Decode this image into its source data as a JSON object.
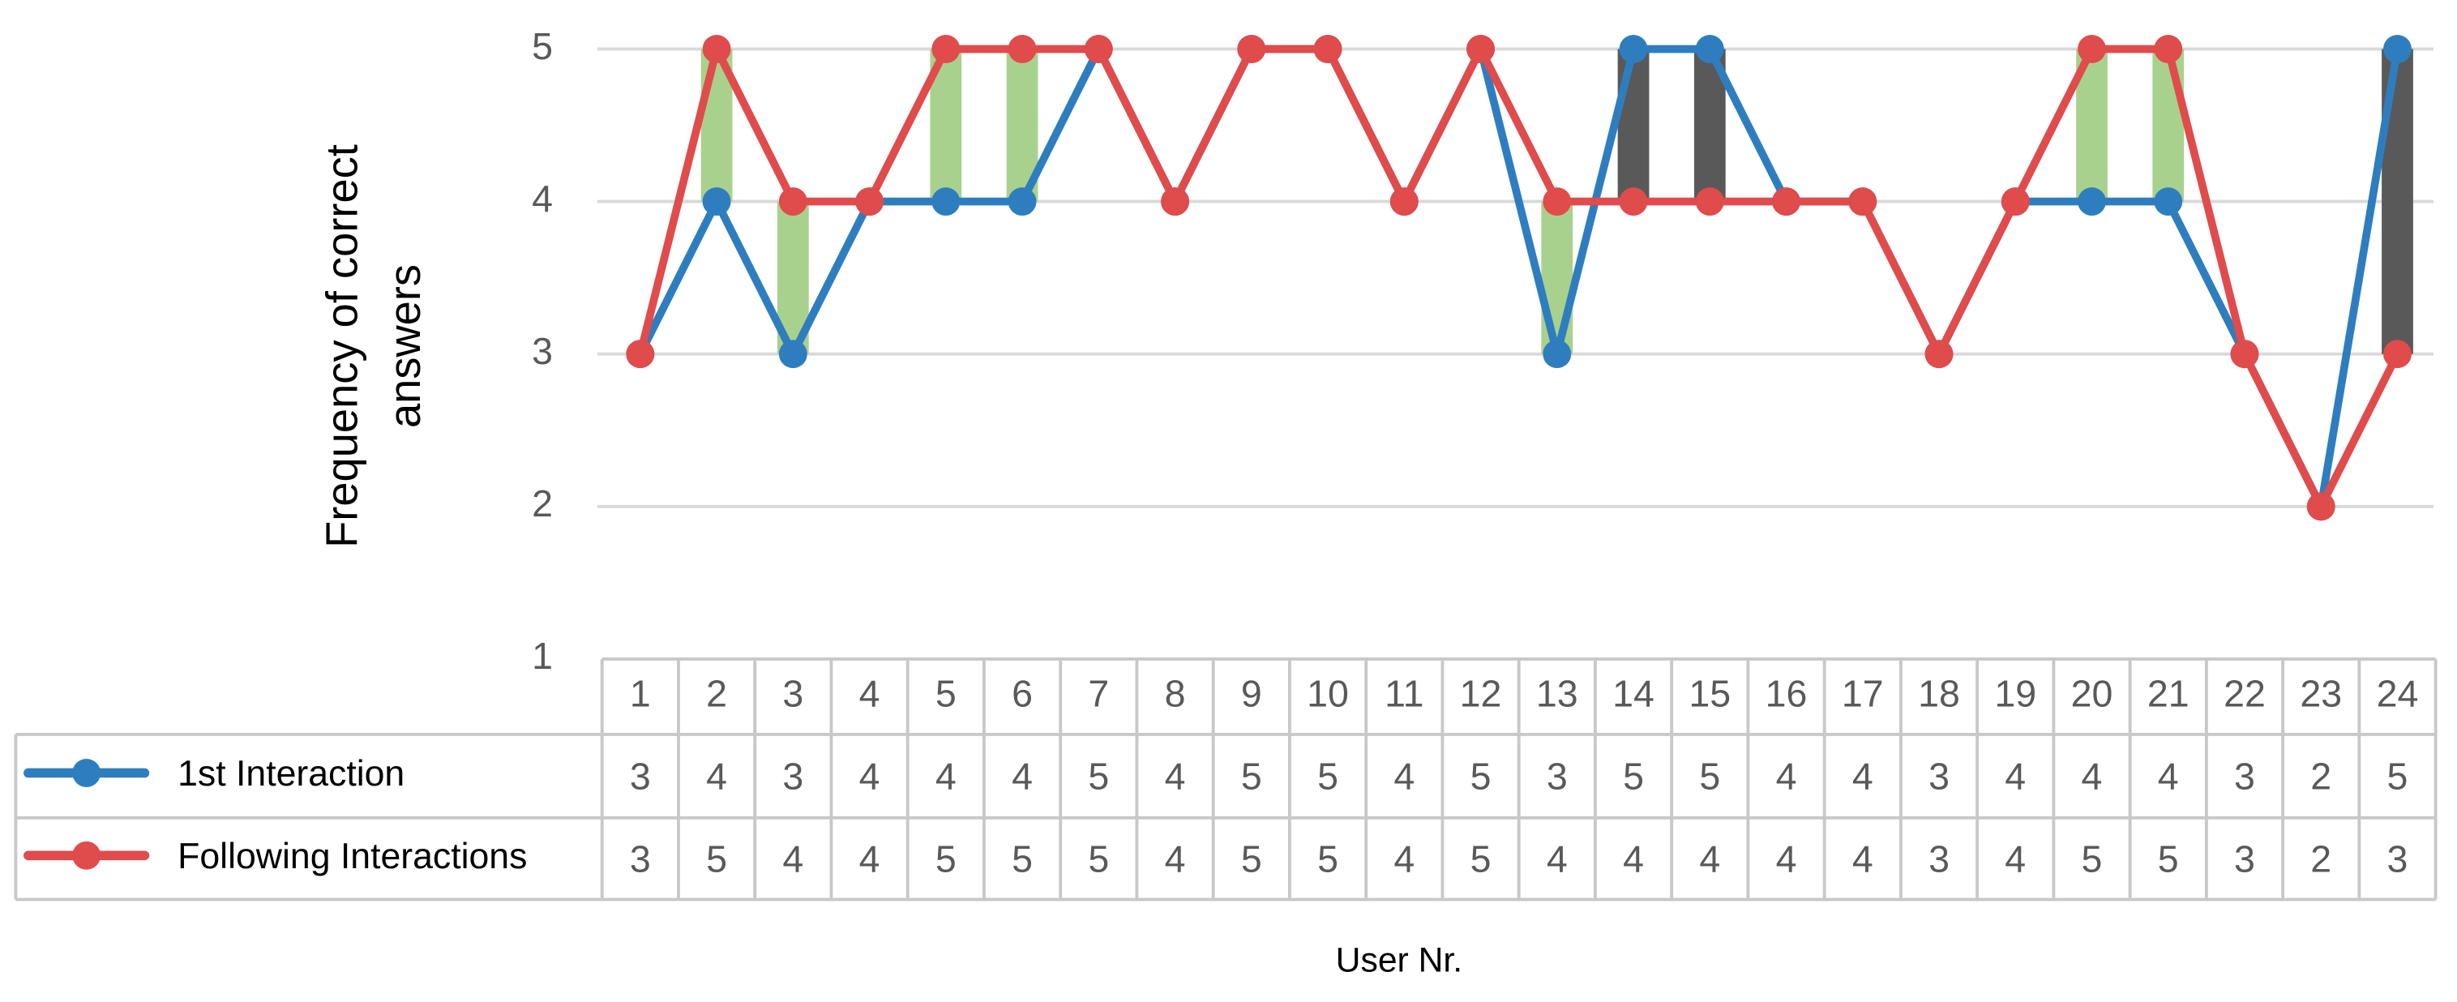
{
  "chart_data": {
    "type": "line",
    "y_label": "Frequency of correct answers",
    "x_label": "User Nr.",
    "categories": [
      "1",
      "2",
      "3",
      "4",
      "5",
      "6",
      "7",
      "8",
      "9",
      "10",
      "11",
      "12",
      "13",
      "14",
      "15",
      "16",
      "17",
      "18",
      "19",
      "20",
      "21",
      "22",
      "23",
      "24"
    ],
    "series": [
      {
        "name": "1st Interaction",
        "color": "#2e7ebf",
        "values": [
          3,
          4,
          3,
          4,
          4,
          4,
          5,
          4,
          5,
          5,
          4,
          5,
          3,
          5,
          5,
          4,
          4,
          3,
          4,
          4,
          4,
          3,
          2,
          5
        ]
      },
      {
        "name": "Following Interactions",
        "color": "#e04b4b",
        "values": [
          3,
          5,
          4,
          4,
          5,
          5,
          5,
          4,
          5,
          5,
          4,
          5,
          4,
          4,
          4,
          4,
          4,
          3,
          4,
          5,
          5,
          3,
          2,
          3
        ]
      }
    ],
    "improvement_color": "#a9d18e",
    "decline_color": "#595959",
    "ylim": [
      1,
      5
    ],
    "yticks": [
      1,
      2,
      3,
      4,
      5
    ],
    "grid": true
  }
}
